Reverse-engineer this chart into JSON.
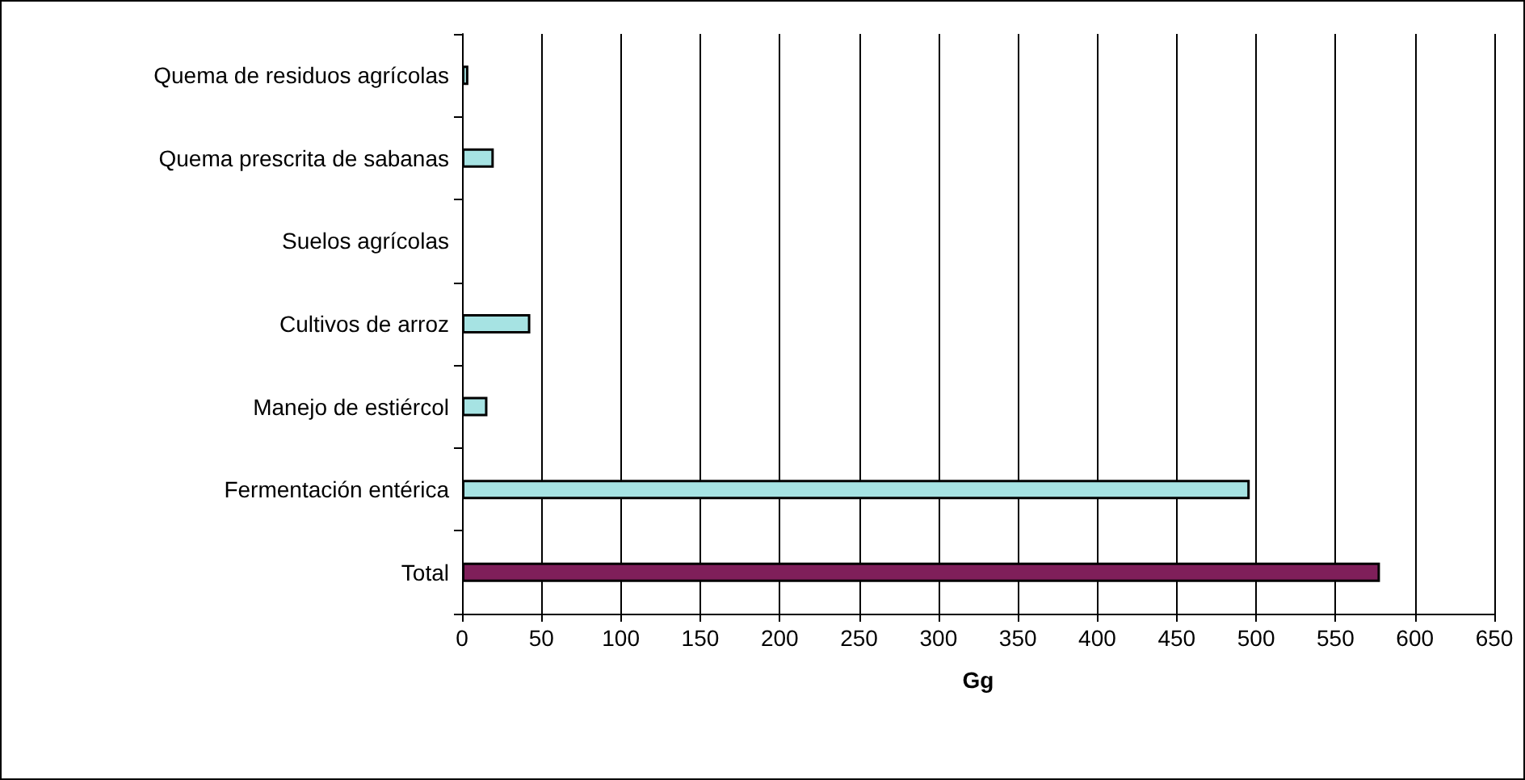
{
  "chart_data": {
    "type": "bar",
    "orientation": "horizontal",
    "xlabel": "Gg",
    "categories": [
      "Quema de residuos agrícolas",
      "Quema prescrita de sabanas",
      "Suelos agrícolas",
      "Cultivos de arroz",
      "Manejo de estiércol",
      "Fermentación entérica",
      "Total"
    ],
    "values": [
      4,
      20,
      null,
      43,
      16,
      496,
      578
    ],
    "colors": [
      "#a6e3e3",
      "#a6e3e3",
      "#a6e3e3",
      "#a6e3e3",
      "#a6e3e3",
      "#a6e3e3",
      "#7f1f5a"
    ],
    "xlim": [
      0,
      650
    ],
    "xticks": [
      0,
      50,
      100,
      150,
      200,
      250,
      300,
      350,
      400,
      450,
      500,
      550,
      600,
      650
    ],
    "grid": "x"
  }
}
